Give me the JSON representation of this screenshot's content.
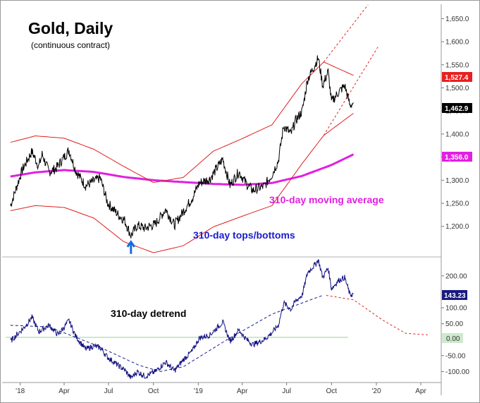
{
  "title": "Gold, Daily",
  "subtitle": "(continuous contract)",
  "annotations": {
    "moving_average": "310-day moving average",
    "tops_bottoms": "310-day tops/bottoms",
    "detrend": "310-day detrend"
  },
  "colors": {
    "price": "#000000",
    "band": "#e02020",
    "ma": "#e020e0",
    "detrend": "#101080",
    "annotation_blue": "#1a1ad0",
    "annotation_magenta": "#e020e0",
    "arrow": "#1a6ae0",
    "label_red": "#e82020",
    "label_black": "#000000",
    "label_magenta": "#e020e0",
    "label_navy": "#1a1a80",
    "label_green": "#cfe8cf"
  },
  "icons": {
    "bottom_marker": "up-arrow-icon"
  },
  "price_labels": {
    "upper_band": "1,527.4",
    "last_price": "1,462.9",
    "ma_value": "1,356.0"
  },
  "detrend_labels": {
    "last_value": "143.23",
    "zero": "0.00"
  },
  "chart_data": [
    {
      "type": "line",
      "panel": "price",
      "title": "Gold, Daily",
      "subtitle": "(continuous contract)",
      "x_axis_labels": [
        "'18",
        "Apr",
        "Jul",
        "Oct",
        "'19",
        "Apr",
        "Jul",
        "Oct",
        "'20",
        "Apr"
      ],
      "x_axis_dates": [
        "2018-01-01",
        "2018-04-01",
        "2018-07-01",
        "2018-10-01",
        "2019-01-01",
        "2019-04-01",
        "2019-07-01",
        "2019-10-01",
        "2020-01-01",
        "2020-04-01"
      ],
      "y_axis_ticks": [
        "1,200.0",
        "1,250.0",
        "1,300.0",
        "1,350.0",
        "1,400.0",
        "1,450.0",
        "1,500.0",
        "1,550.0",
        "1,600.0",
        "1,650.0"
      ],
      "y_axis_tick_values": [
        1200,
        1250,
        1300,
        1350,
        1400,
        1450,
        1500,
        1550,
        1600,
        1650
      ],
      "ylim": [
        1140,
        1675
      ],
      "series": [
        {
          "style": "price",
          "x": [
            "2017-12-12",
            "2018-01-05",
            "2018-01-25",
            "2018-02-08",
            "2018-02-15",
            "2018-03-01",
            "2018-03-15",
            "2018-04-11",
            "2018-04-25",
            "2018-05-15",
            "2018-06-01",
            "2018-06-14",
            "2018-06-29",
            "2018-07-20",
            "2018-08-03",
            "2018-08-16",
            "2018-08-29",
            "2018-09-14",
            "2018-10-05",
            "2018-10-26",
            "2018-11-13",
            "2018-12-03",
            "2018-12-20",
            "2019-01-03",
            "2019-01-25",
            "2019-02-20",
            "2019-03-07",
            "2019-03-25",
            "2019-04-10",
            "2019-04-23",
            "2019-05-02",
            "2019-05-16",
            "2019-05-31",
            "2019-06-14",
            "2019-06-25",
            "2019-07-10",
            "2019-07-19",
            "2019-08-02",
            "2019-08-13",
            "2019-08-28",
            "2019-09-04",
            "2019-09-13",
            "2019-09-24",
            "2019-10-01",
            "2019-10-15",
            "2019-10-28",
            "2019-11-08",
            "2019-11-15"
          ],
          "y": [
            1245,
            1322,
            1362,
            1330,
            1356,
            1318,
            1325,
            1365,
            1320,
            1288,
            1298,
            1305,
            1251,
            1226,
            1213,
            1180,
            1202,
            1196,
            1205,
            1237,
            1203,
            1235,
            1262,
            1294,
            1303,
            1346,
            1289,
            1318,
            1292,
            1278,
            1282,
            1287,
            1310,
            1342,
            1418,
            1400,
            1428,
            1450,
            1518,
            1550,
            1565,
            1505,
            1535,
            1470,
            1490,
            1505,
            1462,
            1468
          ]
        },
        {
          "name": "310-day moving average",
          "style": "ma",
          "x": [
            "2017-12-12",
            "2018-02-01",
            "2018-04-01",
            "2018-06-01",
            "2018-08-01",
            "2018-10-01",
            "2018-12-01",
            "2019-02-01",
            "2019-04-01",
            "2019-06-01",
            "2019-08-01",
            "2019-10-01",
            "2019-11-15"
          ],
          "y": [
            1308,
            1317,
            1322,
            1318,
            1307,
            1300,
            1296,
            1292,
            1290,
            1294,
            1309,
            1333,
            1356
          ]
        },
        {
          "style": "band",
          "x": [
            "2017-12-12",
            "2018-02-01",
            "2018-04-01",
            "2018-06-01",
            "2018-08-01",
            "2018-10-01",
            "2018-12-01",
            "2019-02-01",
            "2019-04-01",
            "2019-06-01",
            "2019-08-01",
            "2019-09-15",
            "2019-11-15"
          ],
          "y": [
            1382,
            1396,
            1391,
            1367,
            1330,
            1295,
            1306,
            1363,
            1390,
            1420,
            1509,
            1556,
            1527
          ]
        },
        {
          "style": "band",
          "x": [
            "2017-12-12",
            "2018-02-01",
            "2018-04-01",
            "2018-06-01",
            "2018-08-01",
            "2018-10-01",
            "2018-12-01",
            "2019-02-01",
            "2019-04-01",
            "2019-06-01",
            "2019-08-01",
            "2019-09-15",
            "2019-11-15"
          ],
          "y": [
            1234,
            1245,
            1241,
            1218,
            1167,
            1143,
            1158,
            1199,
            1222,
            1245,
            1335,
            1397,
            1445
          ]
        },
        {
          "style": "band-projection",
          "x": [
            "2019-09-15",
            "2019-12-15"
          ],
          "y": [
            1556,
            1680
          ]
        },
        {
          "style": "band-projection",
          "x": [
            "2019-09-15",
            "2020-01-05"
          ],
          "y": [
            1397,
            1590
          ]
        }
      ],
      "marker": {
        "type": "arrow-up",
        "x": "2018-08-16",
        "y": 1168
      }
    },
    {
      "type": "line",
      "panel": "detrend",
      "title": "310-day detrend",
      "y_axis_ticks": [
        "-100.00",
        "-50.00",
        "50.00",
        "100.00",
        "200.00"
      ],
      "y_axis_tick_values": [
        -100,
        -50,
        50,
        100,
        200
      ],
      "ylim": [
        -130,
        255
      ],
      "zero_line": 0,
      "series": [
        {
          "style": "detrend",
          "x": [
            "2017-12-12",
            "2018-01-10",
            "2018-01-25",
            "2018-02-08",
            "2018-03-01",
            "2018-03-20",
            "2018-04-11",
            "2018-04-25",
            "2018-05-15",
            "2018-06-01",
            "2018-06-14",
            "2018-06-29",
            "2018-07-20",
            "2018-08-03",
            "2018-08-16",
            "2018-08-29",
            "2018-09-14",
            "2018-10-05",
            "2018-10-26",
            "2018-11-13",
            "2018-12-03",
            "2018-12-20",
            "2019-01-03",
            "2019-01-25",
            "2019-02-20",
            "2019-03-07",
            "2019-03-25",
            "2019-04-10",
            "2019-04-23",
            "2019-05-02",
            "2019-05-16",
            "2019-05-31",
            "2019-06-14",
            "2019-06-25",
            "2019-07-10",
            "2019-07-19",
            "2019-08-02",
            "2019-08-13",
            "2019-08-28",
            "2019-09-04",
            "2019-09-13",
            "2019-09-24",
            "2019-10-01",
            "2019-10-15",
            "2019-10-28",
            "2019-11-08",
            "2019-11-15"
          ],
          "y": [
            -5,
            40,
            70,
            25,
            45,
            15,
            60,
            10,
            -30,
            -20,
            -25,
            -55,
            -80,
            -95,
            -120,
            -100,
            -115,
            -100,
            -70,
            -98,
            -60,
            -35,
            5,
            15,
            55,
            -5,
            30,
            0,
            -15,
            -10,
            0,
            20,
            45,
            115,
            95,
            120,
            140,
            210,
            235,
            250,
            195,
            225,
            160,
            185,
            195,
            140,
            143
          ]
        },
        {
          "style": "detrend-projection",
          "x": [
            "2017-12-12",
            "2018-03-01",
            "2018-06-01",
            "2018-09-01",
            "2018-10-15",
            "2018-12-01",
            "2019-03-01",
            "2019-06-01",
            "2019-09-15",
            "2019-11-15",
            "2020-01-15",
            "2020-03-01",
            "2020-04-15"
          ],
          "y": [
            45,
            40,
            -15,
            -80,
            -100,
            -85,
            0,
            80,
            140,
            125,
            60,
            20,
            15
          ]
        }
      ]
    }
  ]
}
